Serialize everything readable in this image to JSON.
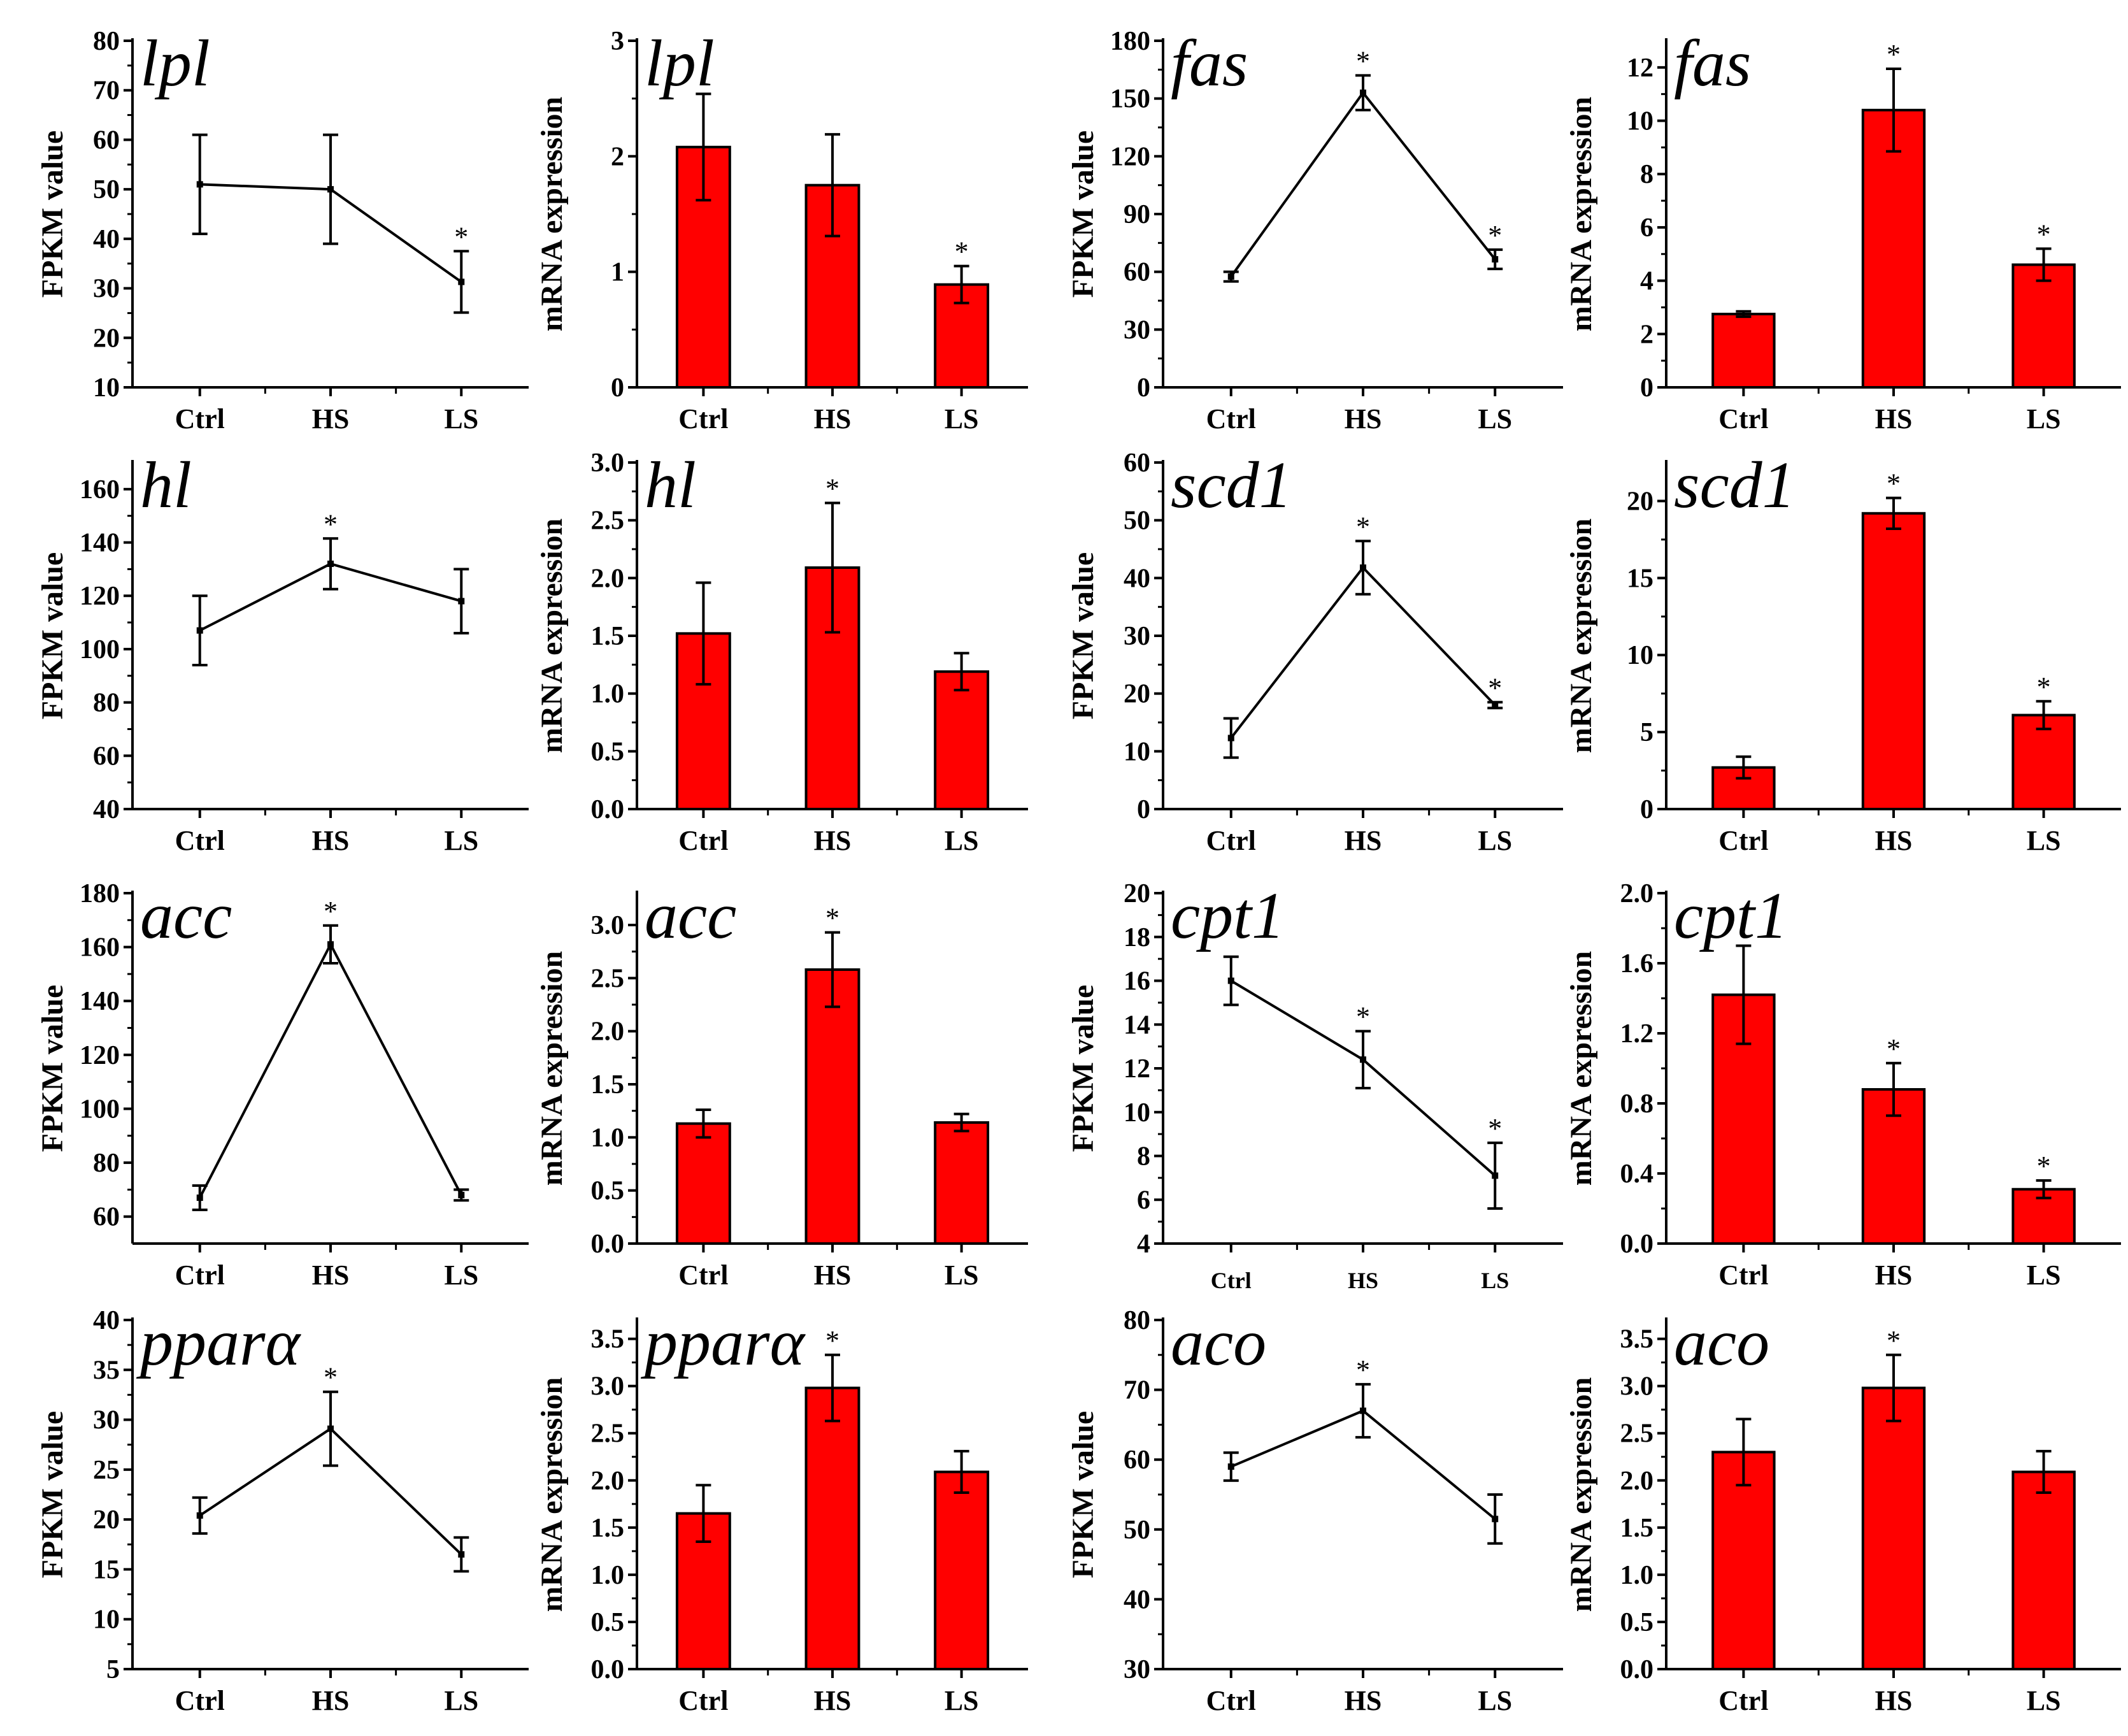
{
  "colors": {
    "bar": "#ff0000",
    "axis": "#000000"
  },
  "chart_data": [
    {
      "type": "line",
      "title": "lpl",
      "ylabel": "FPKM value",
      "categories": [
        "Ctrl",
        "HS",
        "LS"
      ],
      "values": [
        51,
        50,
        31.3
      ],
      "errors": [
        10,
        11,
        6.2
      ],
      "significant": [
        false,
        false,
        true
      ],
      "ylim": [
        10,
        80
      ],
      "yticks": [
        10,
        20,
        30,
        40,
        50,
        60,
        70,
        80
      ],
      "ytick_labels": [
        "10",
        "20",
        "30",
        "40",
        "50",
        "60",
        "70",
        "80"
      ]
    },
    {
      "type": "bar",
      "title": "lpl",
      "ylabel": "mRNA expression",
      "categories": [
        "Ctrl",
        "HS",
        "LS"
      ],
      "values": [
        2.08,
        1.75,
        0.89
      ],
      "errors": [
        0.46,
        0.44,
        0.16
      ],
      "significant": [
        false,
        false,
        true
      ],
      "ylim": [
        0,
        3
      ],
      "yticks": [
        0,
        1,
        2,
        3
      ],
      "ytick_labels": [
        "0",
        "1",
        "2",
        "3"
      ]
    },
    {
      "type": "line",
      "title": "fas",
      "ylabel": "FPKM value",
      "categories": [
        "Ctrl",
        "HS",
        "LS"
      ],
      "values": [
        57.5,
        153,
        66.5
      ],
      "errors": [
        2.5,
        9,
        5
      ],
      "significant": [
        false,
        true,
        true
      ],
      "ylim": [
        0,
        180
      ],
      "yticks": [
        0,
        30,
        60,
        90,
        120,
        150,
        180
      ],
      "ytick_labels": [
        "0",
        "30",
        "60",
        "90",
        "120",
        "150",
        "180"
      ]
    },
    {
      "type": "bar",
      "title": "fas",
      "ylabel": "mRNA expression",
      "categories": [
        "Ctrl",
        "HS",
        "LS"
      ],
      "values": [
        2.75,
        10.4,
        4.6
      ],
      "errors": [
        0.1,
        1.55,
        0.6
      ],
      "significant": [
        false,
        true,
        true
      ],
      "ylim": [
        0,
        13
      ],
      "yticks": [
        0,
        2,
        4,
        6,
        8,
        10,
        12
      ],
      "ytick_labels": [
        "0",
        "2",
        "4",
        "6",
        "8",
        "10",
        "12"
      ]
    },
    {
      "type": "line",
      "title": "hl",
      "ylabel": "FPKM value",
      "categories": [
        "Ctrl",
        "HS",
        "LS"
      ],
      "values": [
        107,
        132,
        118
      ],
      "errors": [
        13,
        9.5,
        12
      ],
      "significant": [
        false,
        true,
        false
      ],
      "ylim": [
        40,
        170
      ],
      "yticks": [
        40,
        60,
        80,
        100,
        120,
        140,
        160
      ],
      "ytick_labels": [
        "40",
        "60",
        "80",
        "100",
        "120",
        "140",
        "160"
      ]
    },
    {
      "type": "bar",
      "title": "hl",
      "ylabel": "mRNA expression",
      "categories": [
        "Ctrl",
        "HS",
        "LS"
      ],
      "values": [
        1.52,
        2.09,
        1.19
      ],
      "errors": [
        0.44,
        0.56,
        0.16
      ],
      "significant": [
        false,
        true,
        false
      ],
      "ylim": [
        0,
        3
      ],
      "yticks": [
        0,
        0.5,
        1,
        1.5,
        2,
        2.5,
        3
      ],
      "ytick_labels": [
        "0.0",
        "0.5",
        "1.0",
        "1.5",
        "2.0",
        "2.5",
        "3.0"
      ]
    },
    {
      "type": "line",
      "title": "scd1",
      "ylabel": "FPKM value",
      "categories": [
        "Ctrl",
        "HS",
        "LS"
      ],
      "values": [
        12.3,
        41.8,
        18
      ],
      "errors": [
        3.4,
        4.6,
        0.5
      ],
      "significant": [
        false,
        true,
        true
      ],
      "ylim": [
        0,
        60
      ],
      "yticks": [
        0,
        10,
        20,
        30,
        40,
        50,
        60
      ],
      "ytick_labels": [
        "0",
        "10",
        "20",
        "30",
        "40",
        "50",
        "60"
      ]
    },
    {
      "type": "bar",
      "title": "scd1",
      "ylabel": "mRNA expression",
      "categories": [
        "Ctrl",
        "HS",
        "LS"
      ],
      "values": [
        2.7,
        19.2,
        6.1
      ],
      "errors": [
        0.7,
        1,
        0.9
      ],
      "significant": [
        false,
        true,
        true
      ],
      "ylim": [
        0,
        22.5
      ],
      "yticks": [
        0,
        5,
        10,
        15,
        20
      ],
      "ytick_labels": [
        "0",
        "5",
        "10",
        "15",
        "20"
      ]
    },
    {
      "type": "line",
      "title": "acc",
      "ylabel": "FPKM value",
      "categories": [
        "Ctrl",
        "HS",
        "LS"
      ],
      "values": [
        67,
        161,
        68
      ],
      "errors": [
        4.5,
        7,
        2
      ],
      "significant": [
        false,
        true,
        false
      ],
      "ylim": [
        50,
        180
      ],
      "yticks": [
        60,
        80,
        100,
        120,
        140,
        160,
        180
      ],
      "ytick_labels": [
        "60",
        "80",
        "100",
        "120",
        "140",
        "160",
        "180"
      ]
    },
    {
      "type": "bar",
      "title": "acc",
      "ylabel": "mRNA expression",
      "categories": [
        "Ctrl",
        "HS",
        "LS"
      ],
      "values": [
        1.13,
        2.58,
        1.14
      ],
      "errors": [
        0.13,
        0.35,
        0.08
      ],
      "significant": [
        false,
        true,
        false
      ],
      "ylim": [
        0,
        3.3
      ],
      "yticks": [
        0,
        0.5,
        1,
        1.5,
        2,
        2.5,
        3
      ],
      "ytick_labels": [
        "0.0",
        "0.5",
        "1.0",
        "1.5",
        "2.0",
        "2.5",
        "3.0"
      ]
    },
    {
      "type": "line",
      "title": "cpt1",
      "ylabel": "FPKM value",
      "categories": [
        "Ctrl",
        "HS",
        "LS"
      ],
      "values": [
        16,
        12.4,
        7.1
      ],
      "errors": [
        1.1,
        1.3,
        1.5
      ],
      "significant": [
        false,
        true,
        true
      ],
      "ylim": [
        4,
        20
      ],
      "yticks": [
        4,
        6,
        8,
        10,
        12,
        14,
        16,
        18,
        20
      ],
      "ytick_labels": [
        "4",
        "6",
        "8",
        "10",
        "12",
        "14",
        "16",
        "18",
        "20"
      ]
    },
    {
      "type": "bar",
      "title": "cpt1",
      "ylabel": "mRNA expression",
      "categories": [
        "Ctrl",
        "HS",
        "LS"
      ],
      "values": [
        1.42,
        0.88,
        0.31
      ],
      "errors": [
        0.28,
        0.15,
        0.05
      ],
      "significant": [
        false,
        true,
        true
      ],
      "ylim": [
        0,
        2
      ],
      "yticks": [
        0,
        0.4,
        0.8,
        1.2,
        1.6,
        2
      ],
      "ytick_labels": [
        "0.0",
        "0.4",
        "0.8",
        "1.2",
        "1.6",
        "2.0"
      ]
    },
    {
      "type": "line",
      "title": "pparα",
      "ylabel": "FPKM value",
      "categories": [
        "Ctrl",
        "HS",
        "LS"
      ],
      "values": [
        20.4,
        29.1,
        16.5
      ],
      "errors": [
        1.8,
        3.7,
        1.7
      ],
      "significant": [
        false,
        true,
        false
      ],
      "ylim": [
        5,
        40
      ],
      "yticks": [
        5,
        10,
        15,
        20,
        25,
        30,
        35,
        40
      ],
      "ytick_labels": [
        "5",
        "10",
        "15",
        "20",
        "25",
        "30",
        "35",
        "40"
      ]
    },
    {
      "type": "bar",
      "title": "pparα",
      "ylabel": "mRNA expression",
      "categories": [
        "Ctrl",
        "HS",
        "LS"
      ],
      "values": [
        1.65,
        2.98,
        2.09
      ],
      "errors": [
        0.3,
        0.35,
        0.22
      ],
      "significant": [
        false,
        true,
        false
      ],
      "ylim": [
        0,
        3.7
      ],
      "yticks": [
        0,
        0.5,
        1,
        1.5,
        2,
        2.5,
        3,
        3.5
      ],
      "ytick_labels": [
        "0.0",
        "0.5",
        "1.0",
        "1.5",
        "2.0",
        "2.5",
        "3.0",
        "3.5"
      ]
    },
    {
      "type": "line",
      "title": "aco",
      "ylabel": "FPKM value",
      "categories": [
        "Ctrl",
        "HS",
        "LS"
      ],
      "values": [
        59,
        67,
        51.5
      ],
      "errors": [
        2,
        3.8,
        3.5
      ],
      "significant": [
        false,
        true,
        false
      ],
      "ylim": [
        30,
        80
      ],
      "yticks": [
        30,
        40,
        50,
        60,
        70,
        80
      ],
      "ytick_labels": [
        "30",
        "40",
        "50",
        "60",
        "70",
        "80"
      ]
    },
    {
      "type": "bar",
      "title": "aco",
      "ylabel": "mRNA expression",
      "categories": [
        "Ctrl",
        "HS",
        "LS"
      ],
      "values": [
        2.3,
        2.98,
        2.09
      ],
      "errors": [
        0.35,
        0.35,
        0.22
      ],
      "significant": [
        false,
        true,
        false
      ],
      "ylim": [
        0,
        3.7
      ],
      "yticks": [
        0,
        0.5,
        1,
        1.5,
        2,
        2.5,
        3,
        3.5
      ],
      "ytick_labels": [
        "0.0",
        "0.5",
        "1.0",
        "1.5",
        "2.0",
        "2.5",
        "3.0",
        "3.5"
      ]
    }
  ]
}
